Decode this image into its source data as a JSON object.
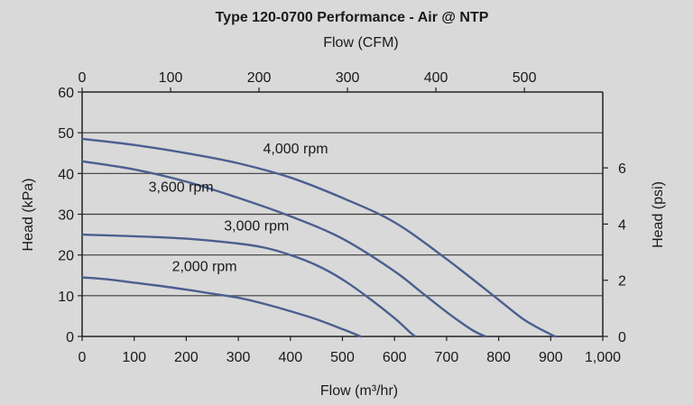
{
  "chart_data": {
    "type": "line",
    "title": "Type 120-0700 Performance - Air @ NTP",
    "xlabel": "Flow (m³/hr)",
    "x2label": "Flow (CFM)",
    "ylabel": "Head (kPa)",
    "y2label": "Head (psi)",
    "xlim": [
      0,
      1000
    ],
    "ylim": [
      0,
      60
    ],
    "x2lim": [
      0,
      588.6
    ],
    "y2lim": [
      0,
      8.7
    ],
    "x_ticks": [
      0,
      100,
      200,
      300,
      400,
      500,
      600,
      700,
      800,
      900,
      1000
    ],
    "x_tick_labels": [
      "0",
      "100",
      "200",
      "300",
      "400",
      "500",
      "600",
      "700",
      "800",
      "900",
      "1,000"
    ],
    "x2_ticks": [
      0,
      100,
      200,
      300,
      400,
      500
    ],
    "x2_tick_labels": [
      "0",
      "100",
      "200",
      "300",
      "400",
      "500"
    ],
    "y_ticks": [
      0,
      10,
      20,
      30,
      40,
      50,
      60
    ],
    "y_tick_labels": [
      "0",
      "10",
      "20",
      "30",
      "40",
      "50",
      "60"
    ],
    "y2_ticks": [
      0,
      2,
      4,
      6
    ],
    "y2_tick_labels": [
      "0",
      "2",
      "4",
      "6"
    ],
    "grid": "horizontal",
    "series": [
      {
        "name": "4,000 rpm",
        "label_at": [
          410,
          45
        ],
        "x": [
          0,
          100,
          200,
          300,
          400,
          500,
          600,
          700,
          800,
          850,
          900,
          910
        ],
        "y": [
          48.5,
          47,
          45,
          42.5,
          39,
          34,
          28,
          19,
          9,
          4,
          0.5,
          0
        ]
      },
      {
        "name": "3,600 rpm",
        "label_at": [
          190,
          35.5
        ],
        "x": [
          0,
          100,
          200,
          300,
          400,
          500,
          600,
          650,
          700,
          750,
          775
        ],
        "y": [
          43,
          41,
          38,
          34,
          29.5,
          24,
          16,
          11,
          6,
          1.5,
          0
        ]
      },
      {
        "name": "3,000 rpm",
        "label_at": [
          335,
          26
        ],
        "x": [
          0,
          100,
          200,
          300,
          350,
          400,
          450,
          500,
          550,
          600,
          630,
          640
        ],
        "y": [
          25,
          24.6,
          24,
          22.8,
          21.8,
          20,
          17.5,
          14,
          9.5,
          4.5,
          1,
          0
        ]
      },
      {
        "name": "2,000 rpm",
        "label_at": [
          235,
          16
        ],
        "x": [
          0,
          50,
          100,
          150,
          200,
          250,
          300,
          350,
          400,
          450,
          500,
          535
        ],
        "y": [
          14.5,
          14,
          13.2,
          12.4,
          11.5,
          10.5,
          9.5,
          8,
          6.2,
          4.2,
          1.8,
          0
        ]
      }
    ]
  }
}
